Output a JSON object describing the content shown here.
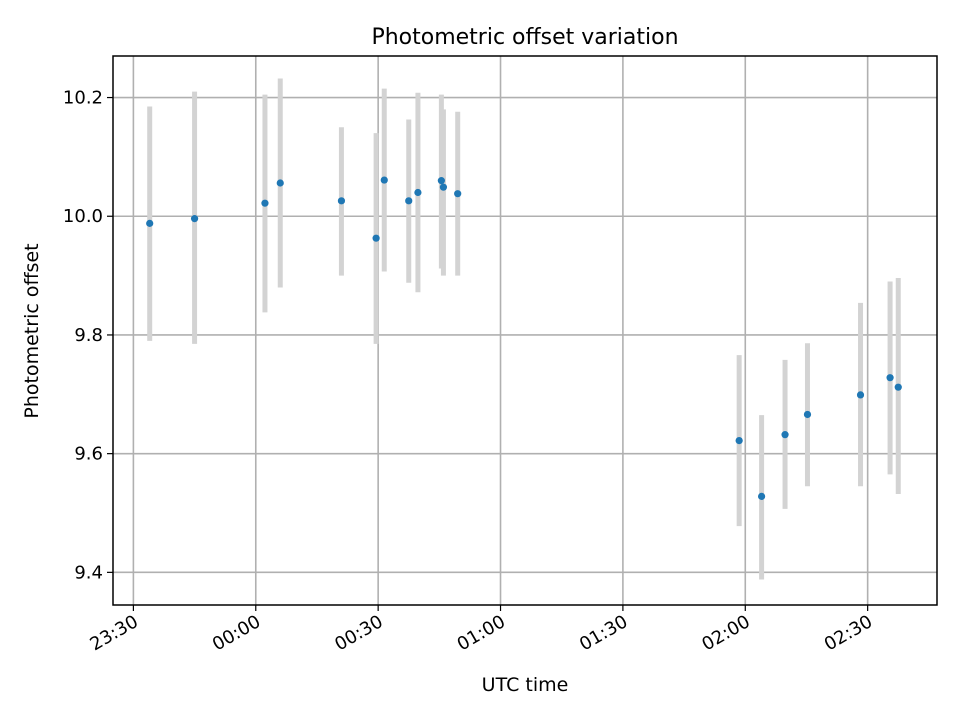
{
  "chart_data": {
    "type": "scatter",
    "title": "Photometric offset variation",
    "xlabel": "UTC time",
    "ylabel": "Photometric offset",
    "x_axis_type": "time",
    "xlim": [
      "23:25",
      "02:47"
    ],
    "ylim": [
      9.345,
      10.27
    ],
    "xticks": [
      "23:30",
      "00:00",
      "00:30",
      "01:00",
      "01:30",
      "02:00",
      "02:30"
    ],
    "yticks": [
      9.4,
      9.6,
      9.8,
      10.0,
      10.2
    ],
    "ytick_labels": [
      "9.4",
      "9.6",
      "9.8",
      "10.0",
      "10.2"
    ],
    "grid": true,
    "legend": "none",
    "marker_color": "#1f77b4",
    "errorbar_color": "#d3d3d3",
    "series": [
      {
        "x": [
          "23:34:00",
          "23:45:00",
          "00:02:15",
          "00:06:00",
          "00:21:00",
          "00:29:30",
          "00:31:30",
          "00:37:30",
          "00:39:45",
          "00:45:30",
          "00:46:00",
          "00:49:30",
          "01:58:30",
          "02:04:00",
          "02:09:45",
          "02:15:15",
          "02:28:15",
          "02:35:30",
          "02:37:30"
        ],
        "y": [
          9.988,
          9.996,
          10.022,
          10.056,
          10.026,
          9.963,
          10.061,
          10.026,
          10.04,
          10.06,
          10.049,
          10.038,
          9.622,
          9.528,
          9.632,
          9.666,
          9.699,
          9.728,
          9.712
        ],
        "yerr_low": [
          9.79,
          9.785,
          9.838,
          9.88,
          9.9,
          9.785,
          9.907,
          9.888,
          9.872,
          9.912,
          9.9,
          9.9,
          9.478,
          9.388,
          9.507,
          9.545,
          9.545,
          9.565,
          9.532
        ],
        "yerr_high": [
          10.185,
          10.21,
          10.205,
          10.232,
          10.15,
          10.14,
          10.215,
          10.163,
          10.208,
          10.205,
          10.18,
          10.176,
          9.766,
          9.665,
          9.758,
          9.786,
          9.854,
          9.89,
          9.896
        ]
      }
    ]
  }
}
